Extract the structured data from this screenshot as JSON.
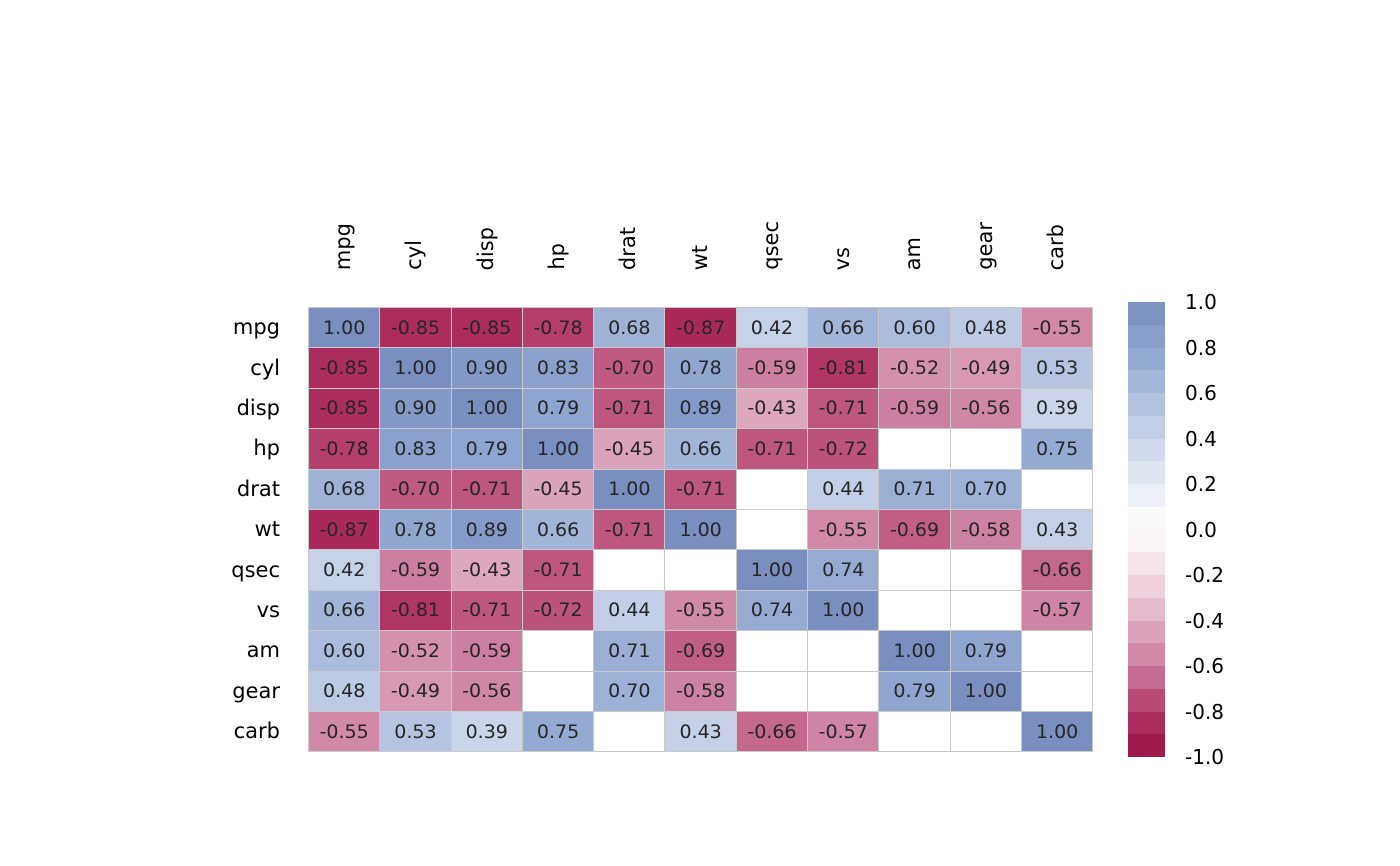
{
  "chart_data": {
    "type": "heatmap",
    "title": "",
    "variables": [
      "mpg",
      "cyl",
      "disp",
      "hp",
      "drat",
      "wt",
      "qsec",
      "vs",
      "am",
      "gear",
      "carb"
    ],
    "matrix": [
      [
        1.0,
        -0.85,
        -0.85,
        -0.78,
        0.68,
        -0.87,
        0.42,
        0.66,
        0.6,
        0.48,
        -0.55
      ],
      [
        -0.85,
        1.0,
        0.9,
        0.83,
        -0.7,
        0.78,
        -0.59,
        -0.81,
        -0.52,
        -0.49,
        0.53
      ],
      [
        -0.85,
        0.9,
        1.0,
        0.79,
        -0.71,
        0.89,
        -0.43,
        -0.71,
        -0.59,
        -0.56,
        0.39
      ],
      [
        -0.78,
        0.83,
        0.79,
        1.0,
        -0.45,
        0.66,
        -0.71,
        -0.72,
        null,
        null,
        0.75
      ],
      [
        0.68,
        -0.7,
        -0.71,
        -0.45,
        1.0,
        -0.71,
        null,
        0.44,
        0.71,
        0.7,
        null
      ],
      [
        -0.87,
        0.78,
        0.89,
        0.66,
        -0.71,
        1.0,
        null,
        -0.55,
        -0.69,
        -0.58,
        0.43
      ],
      [
        0.42,
        -0.59,
        -0.43,
        -0.71,
        null,
        null,
        1.0,
        0.74,
        null,
        null,
        -0.66
      ],
      [
        0.66,
        -0.81,
        -0.71,
        -0.72,
        0.44,
        -0.55,
        0.74,
        1.0,
        null,
        null,
        -0.57
      ],
      [
        0.6,
        -0.52,
        -0.59,
        null,
        0.71,
        -0.69,
        null,
        null,
        1.0,
        0.79,
        null
      ],
      [
        0.48,
        -0.49,
        -0.56,
        null,
        0.7,
        -0.58,
        null,
        null,
        0.79,
        1.0,
        null
      ],
      [
        -0.55,
        0.53,
        0.39,
        0.75,
        null,
        0.43,
        -0.66,
        -0.57,
        null,
        null,
        1.0
      ]
    ],
    "value_decimals": 2,
    "value_range": [
      -1,
      1
    ],
    "legend_ticks": [
      "1.0",
      "0.8",
      "0.6",
      "0.4",
      "0.2",
      "0.0",
      "-0.2",
      "-0.4",
      "-0.6",
      "-0.8",
      "-1.0"
    ],
    "legend_bins": 20,
    "palette": {
      "positive_stops": [
        [
          0.0,
          "#ffffff"
        ],
        [
          0.2,
          "#e4eaf4"
        ],
        [
          0.4,
          "#c9d4e9"
        ],
        [
          0.6,
          "#abbcdc"
        ],
        [
          0.8,
          "#8ea4ce"
        ],
        [
          1.0,
          "#7b8ec0"
        ]
      ],
      "negative_stops": [
        [
          0.0,
          "#ffffff"
        ],
        [
          0.2,
          "#f2dce5"
        ],
        [
          0.4,
          "#e0aec4"
        ],
        [
          0.6,
          "#cc7d9f"
        ],
        [
          0.8,
          "#b23767"
        ],
        [
          1.0,
          "#971043"
        ]
      ],
      "empty_cell": "#ffffff",
      "grid_line": "#c9c9c9",
      "cell_text": "#262626"
    }
  }
}
